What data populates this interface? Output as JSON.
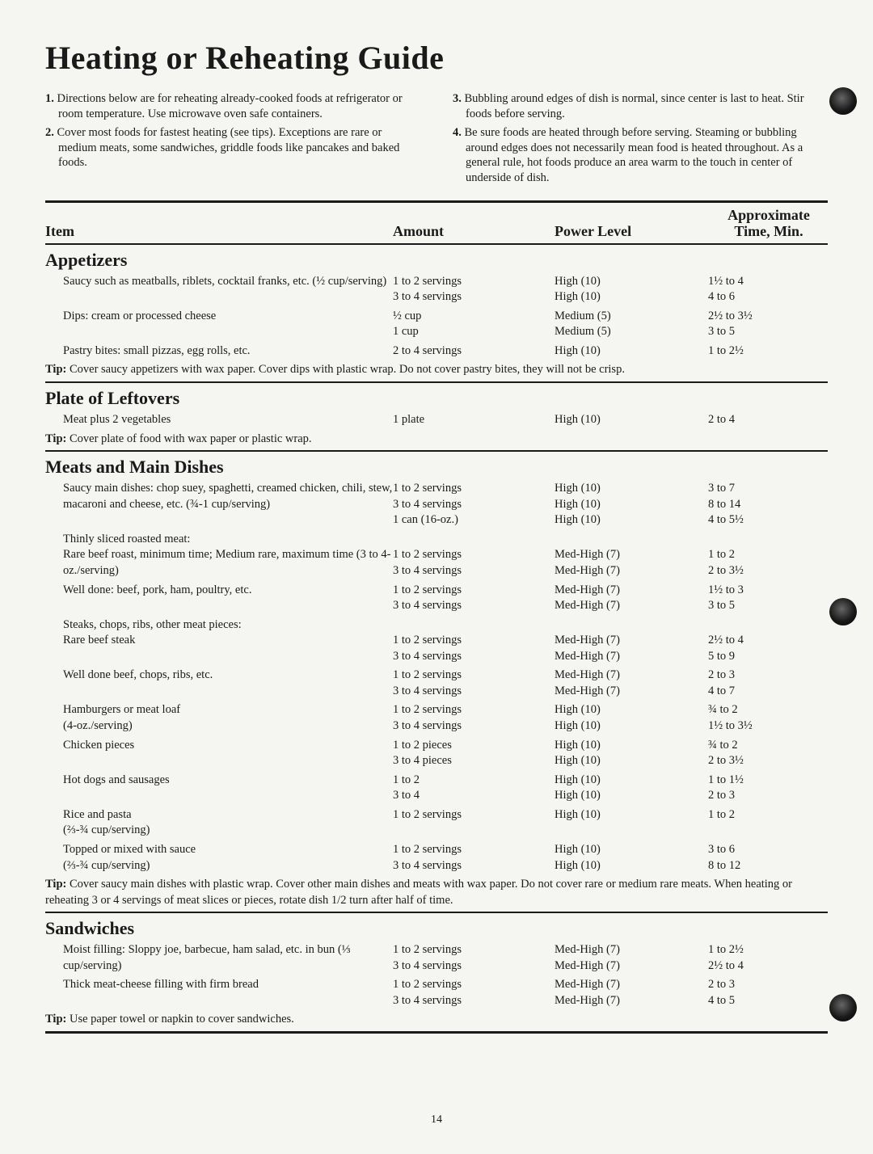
{
  "title": "Heating or Reheating Guide",
  "intro_left": [
    {
      "n": "1.",
      "t": "Directions below are for reheating already-cooked foods at refrigerator or room temperature. Use microwave oven safe containers."
    },
    {
      "n": "2.",
      "t": "Cover most foods for fastest heating (see tips). Exceptions are rare or medium meats, some sandwiches, griddle foods like pancakes and baked foods."
    }
  ],
  "intro_right": [
    {
      "n": "3.",
      "t": "Bubbling around edges of dish is normal, since center is last to heat. Stir foods before serving."
    },
    {
      "n": "4.",
      "t": "Be sure foods are heated through before serving. Steaming or bubbling around edges does not necessarily mean food is heated throughout. As a general rule, hot foods produce an area warm to the touch in center of underside of dish."
    }
  ],
  "thead": {
    "c1": "Item",
    "c2": "Amount",
    "c3": "Power Level",
    "c4a": "Approximate",
    "c4b": "Time, Min."
  },
  "sections": [
    {
      "title": "Appetizers",
      "rows": [
        {
          "item": "Saucy such as meatballs, riblets, cocktail franks, etc. (½ cup/serving)",
          "amt": "1 to 2 servings\n3 to 4 servings",
          "pwr": "High (10)\nHigh (10)",
          "time": "1½ to 4\n4 to 6"
        },
        {
          "item": "Dips: cream or processed cheese",
          "amt": "½ cup\n1 cup",
          "pwr": "Medium (5)\nMedium (5)",
          "time": "2½ to 3½\n3 to 5"
        },
        {
          "item": "Pastry bites: small pizzas, egg rolls, etc.",
          "amt": "2 to 4 servings",
          "pwr": "High (10)",
          "time": "1 to 2½"
        }
      ],
      "tip": "Cover saucy appetizers with wax paper. Cover dips with plastic wrap. Do not cover pastry bites, they will not be crisp."
    },
    {
      "title": "Plate of Leftovers",
      "rows": [
        {
          "item": "Meat plus 2 vegetables",
          "amt": "1 plate",
          "pwr": "High (10)",
          "time": "2 to 4"
        }
      ],
      "tip": "Cover plate of food with wax paper or plastic wrap."
    },
    {
      "title": "Meats and Main Dishes",
      "rows": [
        {
          "item": "Saucy main dishes: chop suey, spaghetti, creamed chicken, chili, stew, macaroni and cheese, etc. (¾-1 cup/serving)",
          "amt": "1 to 2 servings\n3 to 4 servings\n1 can (16-oz.)",
          "pwr": "High (10)\nHigh (10)\nHigh (10)",
          "time": "3 to 7\n8 to 14\n4 to 5½"
        },
        {
          "item": "Thinly sliced roasted meat:\nRare beef roast, minimum time; Medium rare, maximum time (3 to 4-oz./serving)",
          "amt": "\n1 to 2 servings\n3 to 4 servings",
          "pwr": "\nMed-High (7)\nMed-High (7)",
          "time": "\n1 to 2\n2 to 3½"
        },
        {
          "item": "Well done: beef, pork, ham, poultry, etc.",
          "amt": "1 to 2 servings\n3 to 4 servings",
          "pwr": "Med-High (7)\nMed-High (7)",
          "time": "1½ to 3\n3 to 5"
        },
        {
          "item": "Steaks, chops, ribs, other meat pieces:\nRare beef steak",
          "amt": "\n1 to 2 servings\n3 to 4 servings",
          "pwr": "\nMed-High (7)\nMed-High (7)",
          "time": "\n2½ to 4\n5 to 9"
        },
        {
          "item": "Well done beef, chops, ribs, etc.",
          "amt": "1 to 2 servings\n3 to 4 servings",
          "pwr": "Med-High (7)\nMed-High (7)",
          "time": "2 to 3\n4 to 7"
        },
        {
          "item": "Hamburgers or meat loaf\n(4-oz./serving)",
          "amt": "1 to 2 servings\n3 to 4 servings",
          "pwr": "High (10)\nHigh (10)",
          "time": "¾ to 2\n1½ to 3½"
        },
        {
          "item": "Chicken pieces",
          "amt": "1 to 2 pieces\n3 to 4 pieces",
          "pwr": "High (10)\nHigh (10)",
          "time": "¾ to 2\n2 to 3½"
        },
        {
          "item": "Hot dogs and sausages",
          "amt": "1 to 2\n3 to 4",
          "pwr": "High (10)\nHigh (10)",
          "time": "1 to 1½\n2 to 3"
        },
        {
          "item": "Rice and pasta\n(⅔-¾ cup/serving)",
          "amt": "1 to 2 servings",
          "pwr": "High (10)",
          "time": "1 to 2"
        },
        {
          "item": "Topped or mixed with sauce\n(⅔-¾ cup/serving)",
          "amt": "1 to 2 servings\n3 to 4 servings",
          "pwr": "High (10)\nHigh (10)",
          "time": "3 to 6\n8 to 12"
        }
      ],
      "tip": "Cover saucy main dishes with plastic wrap. Cover other main dishes and meats with wax paper. Do not cover rare or medium rare meats. When heating or reheating 3 or 4 servings of meat slices or pieces, rotate dish 1/2 turn after half of time."
    },
    {
      "title": "Sandwiches",
      "rows": [
        {
          "item": "Moist filling: Sloppy joe, barbecue, ham salad, etc. in bun (⅓ cup/serving)",
          "amt": "1 to 2 servings\n3 to 4 servings",
          "pwr": "Med-High (7)\nMed-High (7)",
          "time": "1 to 2½\n2½ to 4"
        },
        {
          "item": "Thick meat-cheese filling with firm bread",
          "amt": "1 to 2 servings\n3 to 4 servings",
          "pwr": "Med-High (7)\nMed-High (7)",
          "time": "2 to 3\n4 to 5"
        }
      ],
      "tip": "Use paper towel or napkin to cover sandwiches."
    }
  ],
  "page_number": "14"
}
